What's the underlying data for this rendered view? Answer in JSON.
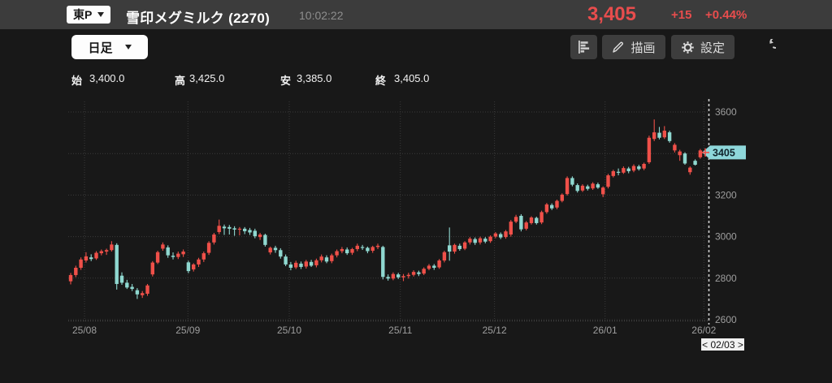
{
  "header": {
    "market_badge": "東P",
    "title": "雪印メグミルク (2270)",
    "time": "10:02:22",
    "price": "3,405",
    "change": "+15",
    "change_pct": "+0.44%"
  },
  "toolbar": {
    "timeframe": "日足",
    "draw_label": "描画",
    "settings_label": "設定"
  },
  "ohlc": {
    "open_label": "始",
    "open": "3,400.0",
    "high_label": "高",
    "high": "3,425.0",
    "low_label": "安",
    "low": "3,385.0",
    "close_label": "終",
    "close": "3,405.0"
  },
  "nav": {
    "page": "< 02/03 >"
  },
  "colors": {
    "up": "#ef5049",
    "down": "#8fd8d0",
    "tag_bg": "#8ed7da",
    "accent_red": "#e84d4d",
    "axis_text": "#9e9e9e",
    "grid": "#3a3a3a"
  },
  "chart_data": {
    "type": "candlestick",
    "title": "雪印メグミルク (2270) 日足",
    "x_labels": [
      "25/08",
      "25/09",
      "25/10",
      "25/11",
      "25/12",
      "26/01",
      "26/02"
    ],
    "month_start_idx": [
      2.7,
      22.9,
      42.7,
      64.4,
      82.8,
      104.4,
      123.7
    ],
    "y_ticks": [
      2600,
      2800,
      3000,
      3200,
      3400,
      3600
    ],
    "ylim": [
      2600,
      3600
    ],
    "grid": true,
    "last_price": 3405,
    "candles": [
      [
        2785,
        2825,
        2770,
        2815
      ],
      [
        2815,
        2860,
        2805,
        2850
      ],
      [
        2850,
        2900,
        2840,
        2890
      ],
      [
        2885,
        2925,
        2875,
        2905
      ],
      [
        2900,
        2915,
        2882,
        2892
      ],
      [
        2895,
        2930,
        2888,
        2922
      ],
      [
        2920,
        2938,
        2910,
        2930
      ],
      [
        2928,
        2942,
        2912,
        2935
      ],
      [
        2935,
        2978,
        2928,
        2962
      ],
      [
        2960,
        2968,
        2745,
        2772
      ],
      [
        2812,
        2828,
        2768,
        2778
      ],
      [
        2778,
        2792,
        2748,
        2755
      ],
      [
        2758,
        2772,
        2738,
        2748
      ],
      [
        2742,
        2752,
        2700,
        2722
      ],
      [
        2718,
        2738,
        2705,
        2728
      ],
      [
        2725,
        2772,
        2715,
        2765
      ],
      [
        2818,
        2882,
        2808,
        2875
      ],
      [
        2875,
        2932,
        2868,
        2925
      ],
      [
        2942,
        2972,
        2932,
        2962
      ],
      [
        2948,
        2958,
        2898,
        2910
      ],
      [
        2908,
        2924,
        2890,
        2902
      ],
      [
        2902,
        2928,
        2892,
        2918
      ],
      [
        2915,
        2938,
        2902,
        2928
      ],
      [
        2876,
        2884,
        2824,
        2834
      ],
      [
        2842,
        2872,
        2832,
        2866
      ],
      [
        2866,
        2898,
        2854,
        2890
      ],
      [
        2890,
        2928,
        2878,
        2920
      ],
      [
        2922,
        2978,
        2912,
        2970
      ],
      [
        2972,
        3018,
        2962,
        3010
      ],
      [
        3022,
        3082,
        3012,
        3052
      ],
      [
        3048,
        3058,
        3008,
        3040
      ],
      [
        3046,
        3056,
        3010,
        3038
      ],
      [
        3040,
        3050,
        3004,
        3034
      ],
      [
        3036,
        3046,
        3006,
        3038
      ],
      [
        3038,
        3046,
        3012,
        3026
      ],
      [
        3032,
        3042,
        3008,
        3020
      ],
      [
        3028,
        3038,
        2992,
        3002
      ],
      [
        2998,
        3018,
        2984,
        3010
      ],
      [
        3008,
        3014,
        2952,
        2960
      ],
      [
        2924,
        2952,
        2914,
        2946
      ],
      [
        2946,
        2956,
        2922,
        2935
      ],
      [
        2935,
        2944,
        2894,
        2904
      ],
      [
        2904,
        2914,
        2858,
        2866
      ],
      [
        2866,
        2878,
        2838,
        2850
      ],
      [
        2852,
        2884,
        2844,
        2874
      ],
      [
        2870,
        2880,
        2844,
        2854
      ],
      [
        2856,
        2888,
        2846,
        2880
      ],
      [
        2878,
        2888,
        2854,
        2860
      ],
      [
        2862,
        2894,
        2852,
        2886
      ],
      [
        2886,
        2914,
        2876,
        2904
      ],
      [
        2900,
        2910,
        2872,
        2880
      ],
      [
        2882,
        2918,
        2872,
        2910
      ],
      [
        2910,
        2938,
        2900,
        2930
      ],
      [
        2930,
        2950,
        2920,
        2940
      ],
      [
        2938,
        2948,
        2912,
        2920
      ],
      [
        2922,
        2946,
        2912,
        2940
      ],
      [
        2940,
        2966,
        2930,
        2956
      ],
      [
        2950,
        2960,
        2936,
        2946
      ],
      [
        2946,
        2952,
        2920,
        2930
      ],
      [
        2932,
        2956,
        2922,
        2950
      ],
      [
        2950,
        2966,
        2940,
        2956
      ],
      [
        2950,
        2956,
        2794,
        2806
      ],
      [
        2806,
        2818,
        2788,
        2798
      ],
      [
        2798,
        2828,
        2790,
        2820
      ],
      [
        2818,
        2826,
        2796,
        2804
      ],
      [
        2804,
        2820,
        2786,
        2810
      ],
      [
        2810,
        2826,
        2798,
        2816
      ],
      [
        2816,
        2838,
        2808,
        2830
      ],
      [
        2828,
        2836,
        2810,
        2820
      ],
      [
        2822,
        2852,
        2815,
        2845
      ],
      [
        2845,
        2868,
        2838,
        2860
      ],
      [
        2860,
        2868,
        2840,
        2850
      ],
      [
        2852,
        2892,
        2845,
        2885
      ],
      [
        2885,
        2932,
        2876,
        2925
      ],
      [
        2958,
        3044,
        2884,
        2928
      ],
      [
        2928,
        2966,
        2918,
        2960
      ],
      [
        2956,
        2966,
        2932,
        2940
      ],
      [
        2942,
        2978,
        2935,
        2972
      ],
      [
        2972,
        2998,
        2962,
        2990
      ],
      [
        2988,
        2996,
        2960,
        2970
      ],
      [
        2972,
        3000,
        2962,
        2992
      ],
      [
        2990,
        2998,
        2968,
        2976
      ],
      [
        2978,
        3006,
        2970,
        3000
      ],
      [
        3000,
        3022,
        2992,
        3015
      ],
      [
        3012,
        3020,
        2988,
        2996
      ],
      [
        2998,
        3032,
        2990,
        3025
      ],
      [
        3010,
        3080,
        3000,
        3072
      ],
      [
        3072,
        3105,
        3065,
        3095
      ],
      [
        3100,
        3108,
        3025,
        3035
      ],
      [
        3038,
        3075,
        3030,
        3068
      ],
      [
        3065,
        3098,
        3058,
        3092
      ],
      [
        3090,
        3096,
        3058,
        3065
      ],
      [
        3068,
        3125,
        3060,
        3118
      ],
      [
        3118,
        3162,
        3110,
        3155
      ],
      [
        3152,
        3160,
        3128,
        3136
      ],
      [
        3140,
        3178,
        3132,
        3172
      ],
      [
        3172,
        3208,
        3165,
        3202
      ],
      [
        3205,
        3290,
        3198,
        3282
      ],
      [
        3282,
        3290,
        3242,
        3250
      ],
      [
        3248,
        3256,
        3212,
        3220
      ],
      [
        3222,
        3252,
        3215,
        3245
      ],
      [
        3242,
        3250,
        3222,
        3230
      ],
      [
        3232,
        3262,
        3225,
        3255
      ],
      [
        3252,
        3260,
        3230,
        3236
      ],
      [
        3204,
        3242,
        3190,
        3236
      ],
      [
        3240,
        3302,
        3232,
        3295
      ],
      [
        3292,
        3322,
        3285,
        3315
      ],
      [
        3312,
        3328,
        3295,
        3308
      ],
      [
        3308,
        3338,
        3302,
        3330
      ],
      [
        3328,
        3336,
        3305,
        3315
      ],
      [
        3318,
        3348,
        3310,
        3340
      ],
      [
        3338,
        3346,
        3318,
        3325
      ],
      [
        3328,
        3356,
        3320,
        3350
      ],
      [
        3358,
        3486,
        3350,
        3476
      ],
      [
        3470,
        3564,
        3460,
        3502
      ],
      [
        3500,
        3528,
        3468,
        3476
      ],
      [
        3478,
        3532,
        3470,
        3510
      ],
      [
        3502,
        3510,
        3452,
        3460
      ],
      [
        3415,
        3450,
        3405,
        3442
      ],
      [
        3392,
        3418,
        3365,
        3410
      ],
      [
        3400,
        3406,
        3346,
        3352
      ],
      [
        3310,
        3338,
        3298,
        3332
      ],
      [
        3365,
        3372,
        3342,
        3346
      ],
      [
        3382,
        3422,
        3375,
        3415
      ],
      [
        3400,
        3425,
        3385,
        3405
      ]
    ]
  }
}
